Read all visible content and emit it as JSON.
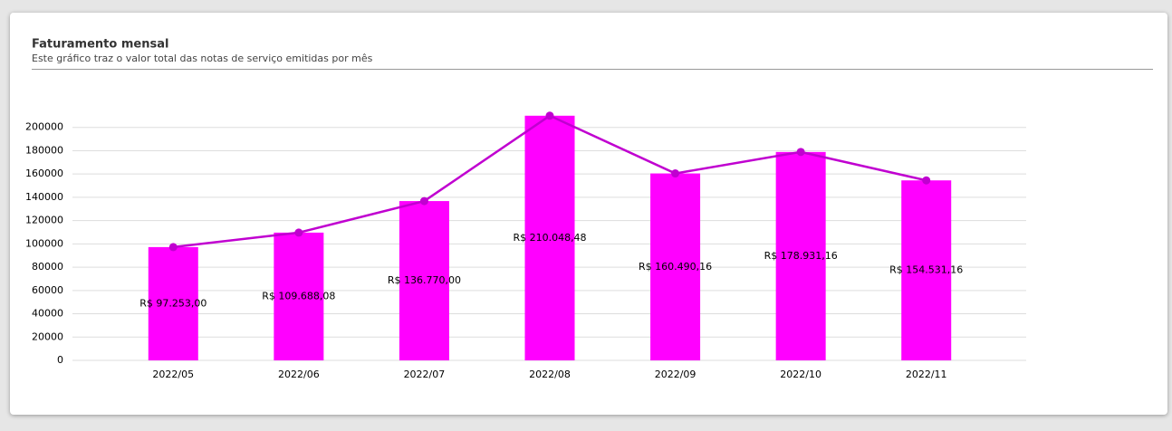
{
  "chart_data": {
    "type": "bar",
    "title": "Faturamento mensal",
    "subtitle": "Este gráfico traz o valor total das notas de serviço emitidas por mês",
    "categories": [
      "2022/05",
      "2022/06",
      "2022/07",
      "2022/08",
      "2022/09",
      "2022/10",
      "2022/11"
    ],
    "values": [
      97253.0,
      109688.08,
      136770.0,
      210048.48,
      160490.16,
      178931.16,
      154531.16
    ],
    "value_labels": [
      "R$ 97.253,00",
      "R$ 109.688,08",
      "R$ 136.770,00",
      "R$ 210.048,48",
      "R$ 160.490,16",
      "R$ 178.931,16",
      "R$ 154.531,16"
    ],
    "color": "#ff00ff",
    "line": true,
    "line_color": "#c000d0",
    "ylim": [
      0,
      220000
    ],
    "yticks": [
      0,
      20000,
      40000,
      60000,
      80000,
      100000,
      120000,
      140000,
      160000,
      180000,
      200000
    ],
    "grid": true
  }
}
